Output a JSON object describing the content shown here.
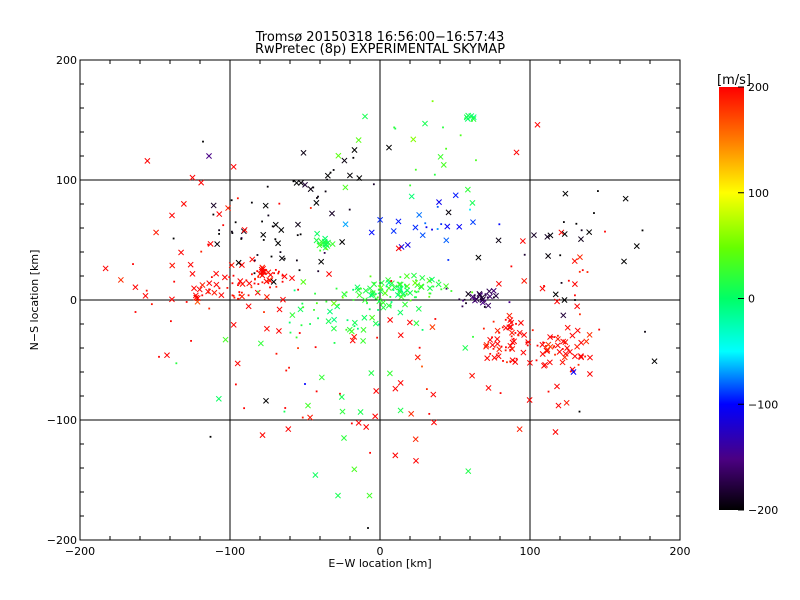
{
  "chart_data": {
    "type": "scatter",
    "title": "Tromsø 20150318 16:56:00−16:57:43",
    "subtitle": "RwPretec (8p) EXPERIMENTAL SKYMAP",
    "xlabel": "E−W location [km]",
    "ylabel": "N−S location [km]",
    "xlim": [
      -200,
      200
    ],
    "ylim": [
      -200,
      200
    ],
    "xticks": [
      -200,
      -100,
      0,
      100,
      200
    ],
    "yticks": [
      -200,
      -100,
      0,
      100,
      200
    ],
    "xtick_labels": [
      "−200",
      "−100",
      "0",
      "100",
      "200"
    ],
    "ytick_labels": [
      "−200",
      "−100",
      "0",
      "100",
      "200"
    ],
    "grid": true,
    "colorbar": {
      "label": "[m/s]",
      "min": -200,
      "max": 200,
      "ticks": [
        200,
        100,
        0,
        -100,
        -200
      ],
      "tick_labels": [
        "200",
        "100",
        "0",
        "−100",
        "−200"
      ]
    },
    "markers": [
      "x",
      "dot"
    ],
    "clusters": [
      {
        "cx": -95,
        "cy": 12,
        "sx": 18,
        "sy": 9,
        "n": 50,
        "v": 200
      },
      {
        "cx": -78,
        "cy": 18,
        "sx": 5,
        "sy": 4,
        "n": 25,
        "v": 200
      },
      {
        "cx": -130,
        "cy": 10,
        "sx": 20,
        "sy": 15,
        "n": 20,
        "v": 200
      },
      {
        "cx": 110,
        "cy": -42,
        "sx": 18,
        "sy": 8,
        "n": 70,
        "v": 200
      },
      {
        "cx": 85,
        "cy": -28,
        "sx": 8,
        "sy": 8,
        "n": 30,
        "v": 200
      },
      {
        "cx": 10,
        "cy": 8,
        "sx": 18,
        "sy": 6,
        "n": 90,
        "v": 20
      },
      {
        "cx": -20,
        "cy": -15,
        "sx": 25,
        "sy": 12,
        "n": 50,
        "v": 15
      },
      {
        "cx": -37,
        "cy": 47,
        "sx": 3,
        "sy": 3,
        "n": 20,
        "v": 20
      },
      {
        "cx": 60,
        "cy": 152,
        "sx": 2,
        "sy": 1,
        "n": 8,
        "v": 15
      },
      {
        "cx": 68,
        "cy": 1,
        "sx": 7,
        "sy": 4,
        "n": 30,
        "v": -170
      },
      {
        "cx": -70,
        "cy": 50,
        "sx": 25,
        "sy": 20,
        "n": 45,
        "v": -200
      },
      {
        "cx": -30,
        "cy": 95,
        "sx": 20,
        "sy": 15,
        "n": 20,
        "v": -200
      },
      {
        "cx": 30,
        "cy": 60,
        "sx": 20,
        "sy": 15,
        "n": 25,
        "v": -90
      },
      {
        "cx": 20,
        "cy": 110,
        "sx": 25,
        "sy": 30,
        "n": 20,
        "v": 30
      },
      {
        "cx": 0,
        "cy": -60,
        "sx": 60,
        "sy": 40,
        "n": 60,
        "v": 200
      },
      {
        "cx": -30,
        "cy": -80,
        "sx": 50,
        "sy": 40,
        "n": 15,
        "v": 10
      },
      {
        "cx": -100,
        "cy": 60,
        "sx": 40,
        "sy": 40,
        "n": 25,
        "v": 200
      },
      {
        "cx": 120,
        "cy": 50,
        "sx": 25,
        "sy": 30,
        "n": 25,
        "v": -200
      },
      {
        "cx": 120,
        "cy": 10,
        "sx": 20,
        "sy": 20,
        "n": 15,
        "v": 200
      }
    ],
    "points": [
      {
        "x": -163,
        "y": -10,
        "v": 200,
        "m": "dot"
      },
      {
        "x": -142,
        "y": -46,
        "v": 200,
        "m": "x"
      },
      {
        "x": -113,
        "y": -114,
        "v": -200,
        "m": "dot"
      },
      {
        "x": -114,
        "y": 120,
        "v": -150,
        "m": "x"
      },
      {
        "x": -118,
        "y": 132,
        "v": -200,
        "m": "dot"
      },
      {
        "x": -125,
        "y": 102,
        "v": 200,
        "m": "x"
      },
      {
        "x": -76,
        "y": -84,
        "v": -200,
        "m": "x"
      },
      {
        "x": -50,
        "y": -70,
        "v": -100,
        "m": "dot"
      },
      {
        "x": -48,
        "y": -88,
        "v": 30,
        "m": "x"
      },
      {
        "x": -25,
        "y": -93,
        "v": 20,
        "m": "x"
      },
      {
        "x": -24,
        "y": -115,
        "v": 20,
        "m": "x"
      },
      {
        "x": -28,
        "y": -163,
        "v": 10,
        "m": "x"
      },
      {
        "x": -7,
        "y": -163,
        "v": 30,
        "m": "x"
      },
      {
        "x": -8,
        "y": -190,
        "v": -200,
        "m": "dot"
      },
      {
        "x": 24,
        "y": -134,
        "v": 200,
        "m": "x"
      },
      {
        "x": 36,
        "y": -102,
        "v": 200,
        "m": "x"
      },
      {
        "x": 119,
        "y": -88,
        "v": 200,
        "m": "x"
      },
      {
        "x": 133,
        "y": -93,
        "v": -200,
        "m": "dot"
      },
      {
        "x": 117,
        "y": -110,
        "v": 200,
        "m": "x"
      },
      {
        "x": 183,
        "y": -51,
        "v": -200,
        "m": "x"
      },
      {
        "x": 105,
        "y": 146,
        "v": 200,
        "m": "x"
      },
      {
        "x": 91,
        "y": 123,
        "v": 200,
        "m": "x"
      },
      {
        "x": -10,
        "y": 153,
        "v": 10,
        "m": "x"
      },
      {
        "x": 30,
        "y": 147,
        "v": 10,
        "m": "x"
      },
      {
        "x": 6,
        "y": 127,
        "v": -200,
        "m": "x"
      },
      {
        "x": -17,
        "y": 125,
        "v": -200,
        "m": "x"
      },
      {
        "x": 175,
        "y": 58,
        "v": -200,
        "m": "dot"
      },
      {
        "x": 150,
        "y": 57,
        "v": 200,
        "m": "dot"
      },
      {
        "x": 123,
        "y": 0,
        "v": -200,
        "m": "x"
      },
      {
        "x": 130,
        "y": 0,
        "v": -200,
        "m": "dot"
      },
      {
        "x": 129,
        "y": -60,
        "v": -100,
        "m": "x"
      },
      {
        "x": 118,
        "y": -72,
        "v": 200,
        "m": "x"
      },
      {
        "x": 140,
        "y": -48,
        "v": 200,
        "m": "x"
      }
    ]
  }
}
